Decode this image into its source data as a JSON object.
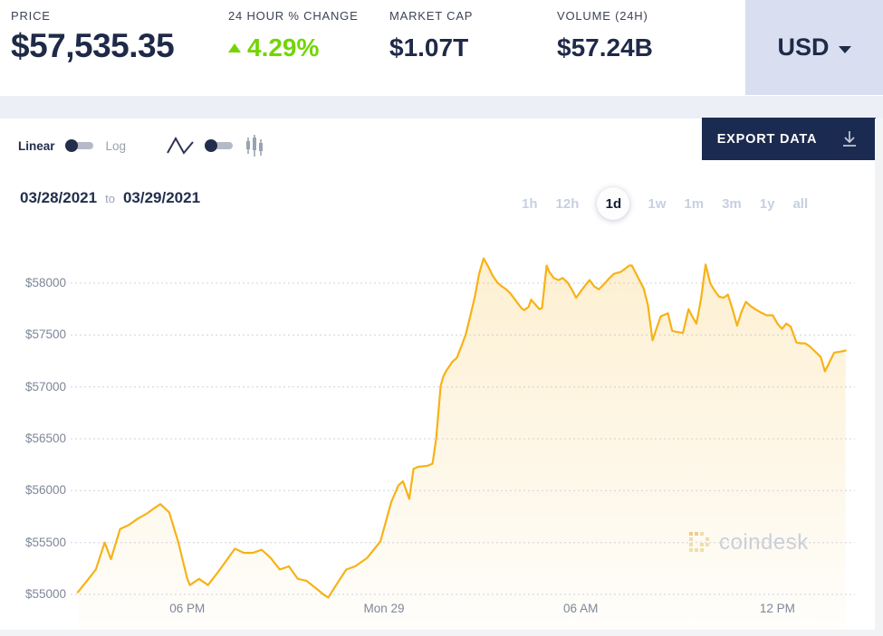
{
  "header": {
    "stats": [
      {
        "label": "PRICE",
        "value": "$57,535.35"
      },
      {
        "label": "24 HOUR % CHANGE",
        "value": "4.29%",
        "direction": "up"
      },
      {
        "label": "MARKET CAP",
        "value": "$1.07T"
      },
      {
        "label": "VOLUME (24H)",
        "value": "$57.24B"
      }
    ],
    "currency_selector": {
      "value": "USD"
    }
  },
  "toolbar": {
    "scale_toggle": {
      "left_label": "Linear",
      "right_label": "Log",
      "selected": "Linear"
    },
    "chart_type_toggle": {
      "left": "line-chart",
      "right": "candlestick-chart",
      "selected": "line-chart"
    },
    "export_button": {
      "label": "EXPORT DATA",
      "icon": "download-icon"
    }
  },
  "range_bar": {
    "date_from": "03/28/2021",
    "date_separator": "to",
    "date_to": "03/29/2021",
    "buttons": [
      {
        "label": "1h",
        "active": false
      },
      {
        "label": "12h",
        "active": false
      },
      {
        "label": "1d",
        "active": true
      },
      {
        "label": "1w",
        "active": false
      },
      {
        "label": "1m",
        "active": false
      },
      {
        "label": "3m",
        "active": false
      },
      {
        "label": "1y",
        "active": false
      },
      {
        "label": "all",
        "active": false
      }
    ]
  },
  "watermark": {
    "text": "coindesk"
  },
  "colors": {
    "accent_line": "#f7b217",
    "positive_green": "#72d501",
    "navy_text": "#1e2a47",
    "currency_box_bg": "#d9def1",
    "export_button_bg": "#1b2a50",
    "gridline": "#ccd3e0",
    "axis_label": "#7e8799",
    "inactive_range": "#c7d0e2"
  },
  "chart_data": {
    "type": "area",
    "series_name": "Price (USD)",
    "x_unit": "hours relative to 00:00 Mon Mar 29",
    "xlim": [
      -9.56,
      14.39
    ],
    "ylim": [
      54660,
      58360
    ],
    "grid": "horizontal-dotted",
    "legend": "none",
    "x_ticks": [
      {
        "label": "06 PM",
        "t": -6
      },
      {
        "label": "Mon 29",
        "t": 0
      },
      {
        "label": "06 AM",
        "t": 6
      },
      {
        "label": "12 PM",
        "t": 12
      }
    ],
    "y_ticks": [
      {
        "label": "$55000",
        "value": 55000
      },
      {
        "label": "$55500",
        "value": 55500
      },
      {
        "label": "$56000",
        "value": 56000
      },
      {
        "label": "$56500",
        "value": 56500
      },
      {
        "label": "$57000",
        "value": 57000
      },
      {
        "label": "$57500",
        "value": 57500
      },
      {
        "label": "$58000",
        "value": 58000
      }
    ],
    "points": [
      [
        -9.34,
        55020
      ],
      [
        -9.01,
        55150
      ],
      [
        -8.79,
        55240
      ],
      [
        -8.52,
        55500
      ],
      [
        -8.33,
        55340
      ],
      [
        -8.05,
        55630
      ],
      [
        -7.78,
        55670
      ],
      [
        -7.51,
        55730
      ],
      [
        -7.23,
        55780
      ],
      [
        -7.01,
        55830
      ],
      [
        -6.82,
        55870
      ],
      [
        -6.55,
        55790
      ],
      [
        -6.27,
        55500
      ],
      [
        -6.0,
        55150
      ],
      [
        -5.92,
        55090
      ],
      [
        -5.64,
        55150
      ],
      [
        -5.37,
        55090
      ],
      [
        -5.1,
        55200
      ],
      [
        -4.82,
        55320
      ],
      [
        -4.55,
        55440
      ],
      [
        -4.27,
        55400
      ],
      [
        -4.0,
        55400
      ],
      [
        -3.73,
        55430
      ],
      [
        -3.45,
        55350
      ],
      [
        -3.18,
        55240
      ],
      [
        -2.9,
        55270
      ],
      [
        -2.63,
        55150
      ],
      [
        -2.36,
        55130
      ],
      [
        -2.08,
        55060
      ],
      [
        -1.81,
        54990
      ],
      [
        -1.7,
        54970
      ],
      [
        -1.42,
        55110
      ],
      [
        -1.15,
        55240
      ],
      [
        -0.88,
        55270
      ],
      [
        -0.52,
        55350
      ],
      [
        -0.11,
        55510
      ],
      [
        0.03,
        55670
      ],
      [
        0.22,
        55890
      ],
      [
        0.44,
        56050
      ],
      [
        0.58,
        56090
      ],
      [
        0.77,
        55920
      ],
      [
        0.9,
        56210
      ],
      [
        1.04,
        56230
      ],
      [
        1.34,
        56240
      ],
      [
        1.48,
        56260
      ],
      [
        1.59,
        56500
      ],
      [
        1.73,
        57010
      ],
      [
        1.81,
        57100
      ],
      [
        1.89,
        57150
      ],
      [
        2.08,
        57240
      ],
      [
        2.22,
        57280
      ],
      [
        2.36,
        57390
      ],
      [
        2.49,
        57500
      ],
      [
        2.63,
        57680
      ],
      [
        2.77,
        57870
      ],
      [
        2.9,
        58090
      ],
      [
        3.04,
        58240
      ],
      [
        3.18,
        58160
      ],
      [
        3.32,
        58070
      ],
      [
        3.45,
        58010
      ],
      [
        3.59,
        57970
      ],
      [
        3.73,
        57940
      ],
      [
        3.86,
        57900
      ],
      [
        4.0,
        57840
      ],
      [
        4.19,
        57760
      ],
      [
        4.27,
        57740
      ],
      [
        4.41,
        57770
      ],
      [
        4.49,
        57840
      ],
      [
        4.6,
        57800
      ],
      [
        4.74,
        57750
      ],
      [
        4.82,
        57760
      ],
      [
        4.96,
        58170
      ],
      [
        5.04,
        58110
      ],
      [
        5.18,
        58050
      ],
      [
        5.32,
        58030
      ],
      [
        5.45,
        58050
      ],
      [
        5.59,
        58010
      ],
      [
        5.73,
        57940
      ],
      [
        5.86,
        57860
      ],
      [
        6.0,
        57920
      ],
      [
        6.14,
        57980
      ],
      [
        6.27,
        58030
      ],
      [
        6.41,
        57970
      ],
      [
        6.55,
        57940
      ],
      [
        6.68,
        57980
      ],
      [
        6.88,
        58050
      ],
      [
        7.01,
        58090
      ],
      [
        7.23,
        58110
      ],
      [
        7.48,
        58170
      ],
      [
        7.56,
        58170
      ],
      [
        7.92,
        57950
      ],
      [
        8.05,
        57790
      ],
      [
        8.19,
        57450
      ],
      [
        8.44,
        57680
      ],
      [
        8.66,
        57710
      ],
      [
        8.79,
        57540
      ],
      [
        8.93,
        57530
      ],
      [
        9.12,
        57520
      ],
      [
        9.29,
        57750
      ],
      [
        9.4,
        57680
      ],
      [
        9.53,
        57610
      ],
      [
        9.67,
        57850
      ],
      [
        9.81,
        58180
      ],
      [
        9.95,
        58000
      ],
      [
        10.08,
        57930
      ],
      [
        10.22,
        57870
      ],
      [
        10.36,
        57860
      ],
      [
        10.49,
        57890
      ],
      [
        10.63,
        57750
      ],
      [
        10.77,
        57590
      ],
      [
        10.9,
        57720
      ],
      [
        11.04,
        57820
      ],
      [
        11.18,
        57780
      ],
      [
        11.32,
        57750
      ],
      [
        11.48,
        57720
      ],
      [
        11.67,
        57690
      ],
      [
        11.86,
        57690
      ],
      [
        12.0,
        57610
      ],
      [
        12.14,
        57560
      ],
      [
        12.27,
        57610
      ],
      [
        12.41,
        57580
      ],
      [
        12.58,
        57430
      ],
      [
        12.71,
        57420
      ],
      [
        12.85,
        57420
      ],
      [
        12.99,
        57390
      ],
      [
        13.12,
        57350
      ],
      [
        13.32,
        57290
      ],
      [
        13.45,
        57150
      ],
      [
        13.59,
        57240
      ],
      [
        13.73,
        57330
      ],
      [
        13.92,
        57340
      ],
      [
        14.08,
        57350
      ]
    ]
  }
}
